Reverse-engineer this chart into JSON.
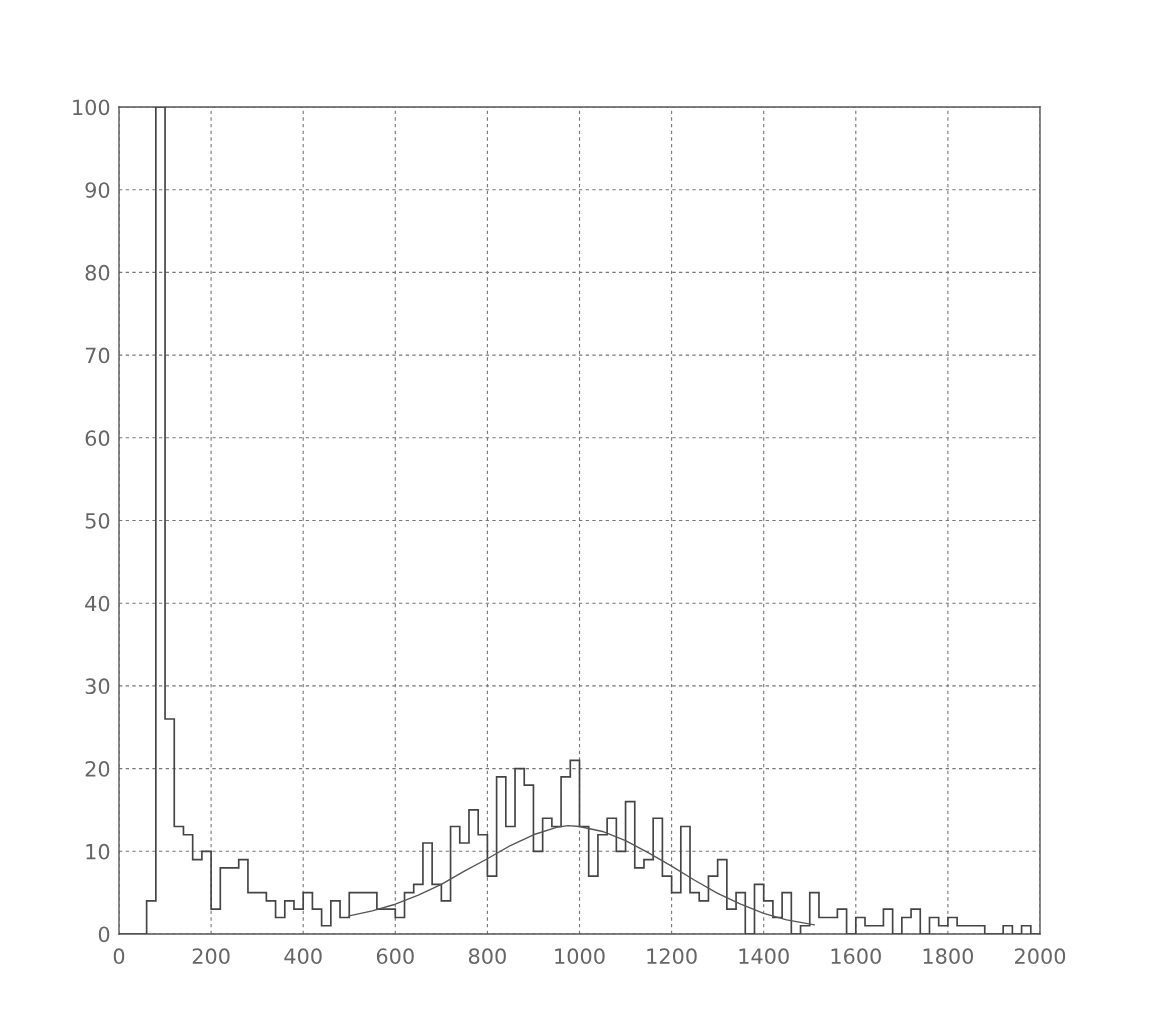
{
  "chart_data": {
    "type": "histogram",
    "color": "#444444",
    "bins": [
      0,
      20,
      40,
      60,
      80,
      100,
      120,
      140,
      160,
      180,
      200,
      220,
      240,
      260,
      280,
      300,
      320,
      340,
      360,
      380,
      400,
      420,
      440,
      460,
      480,
      500,
      520,
      540,
      560,
      580,
      600,
      620,
      640,
      660,
      680,
      700,
      720,
      740,
      760,
      780,
      800,
      820,
      840,
      860,
      880,
      900,
      920,
      940,
      960,
      980,
      1000,
      1020,
      1040,
      1060,
      1080,
      1100,
      1120,
      1140,
      1160,
      1180,
      1200,
      1220,
      1240,
      1260,
      1280,
      1300,
      1320,
      1340,
      1360,
      1380,
      1400,
      1420,
      1440,
      1460,
      1480,
      1500,
      1520,
      1540,
      1560,
      1580,
      1600,
      1620,
      1640,
      1660,
      1680,
      1700,
      1720,
      1740,
      1760,
      1780,
      1800,
      1820,
      1840,
      1860,
      1880,
      1900,
      1920,
      1940,
      1960,
      1980,
      2000
    ],
    "values": [
      0,
      0,
      0,
      4,
      100,
      26,
      13,
      12,
      9,
      10,
      3,
      8,
      8,
      9,
      5,
      5,
      4,
      2,
      4,
      3,
      5,
      3,
      1,
      4,
      2,
      5,
      5,
      5,
      3,
      3,
      2,
      5,
      6,
      11,
      6,
      4,
      13,
      11,
      15,
      12,
      7,
      19,
      13,
      20,
      18,
      10,
      14,
      13,
      19,
      21,
      13,
      7,
      12,
      14,
      10,
      16,
      8,
      9,
      14,
      7,
      5,
      13,
      5,
      4,
      7,
      9,
      3,
      5,
      0,
      6,
      4,
      2,
      5,
      0,
      1,
      5,
      2,
      2,
      3,
      0,
      2,
      1,
      1,
      3,
      0,
      2,
      3,
      0,
      2,
      1,
      2,
      1,
      1,
      1,
      0,
      0,
      1,
      0,
      1,
      0
    ],
    "series": [
      {
        "type": "line",
        "color": "#555555",
        "x": [
          500,
          550,
          600,
          650,
          700,
          750,
          800,
          850,
          900,
          950,
          975,
          1000,
          1050,
          1100,
          1150,
          1200,
          1250,
          1300,
          1350,
          1400,
          1450,
          1510
        ],
        "values": [
          2.2,
          2.8,
          3.6,
          4.7,
          6.0,
          7.6,
          9.1,
          10.7,
          12.0,
          12.9,
          13.1,
          13.0,
          12.4,
          11.3,
          9.8,
          8.2,
          6.5,
          4.9,
          3.6,
          2.5,
          1.7,
          1.1
        ]
      }
    ],
    "xlim": [
      0,
      2000
    ],
    "xticks": [
      0,
      200,
      400,
      600,
      800,
      1000,
      1200,
      1400,
      1600,
      1800,
      2000
    ],
    "ylim": [
      0,
      100
    ],
    "yticks": [
      0,
      10,
      20,
      30,
      40,
      50,
      60,
      70,
      80,
      90,
      100
    ],
    "grid": true
  }
}
